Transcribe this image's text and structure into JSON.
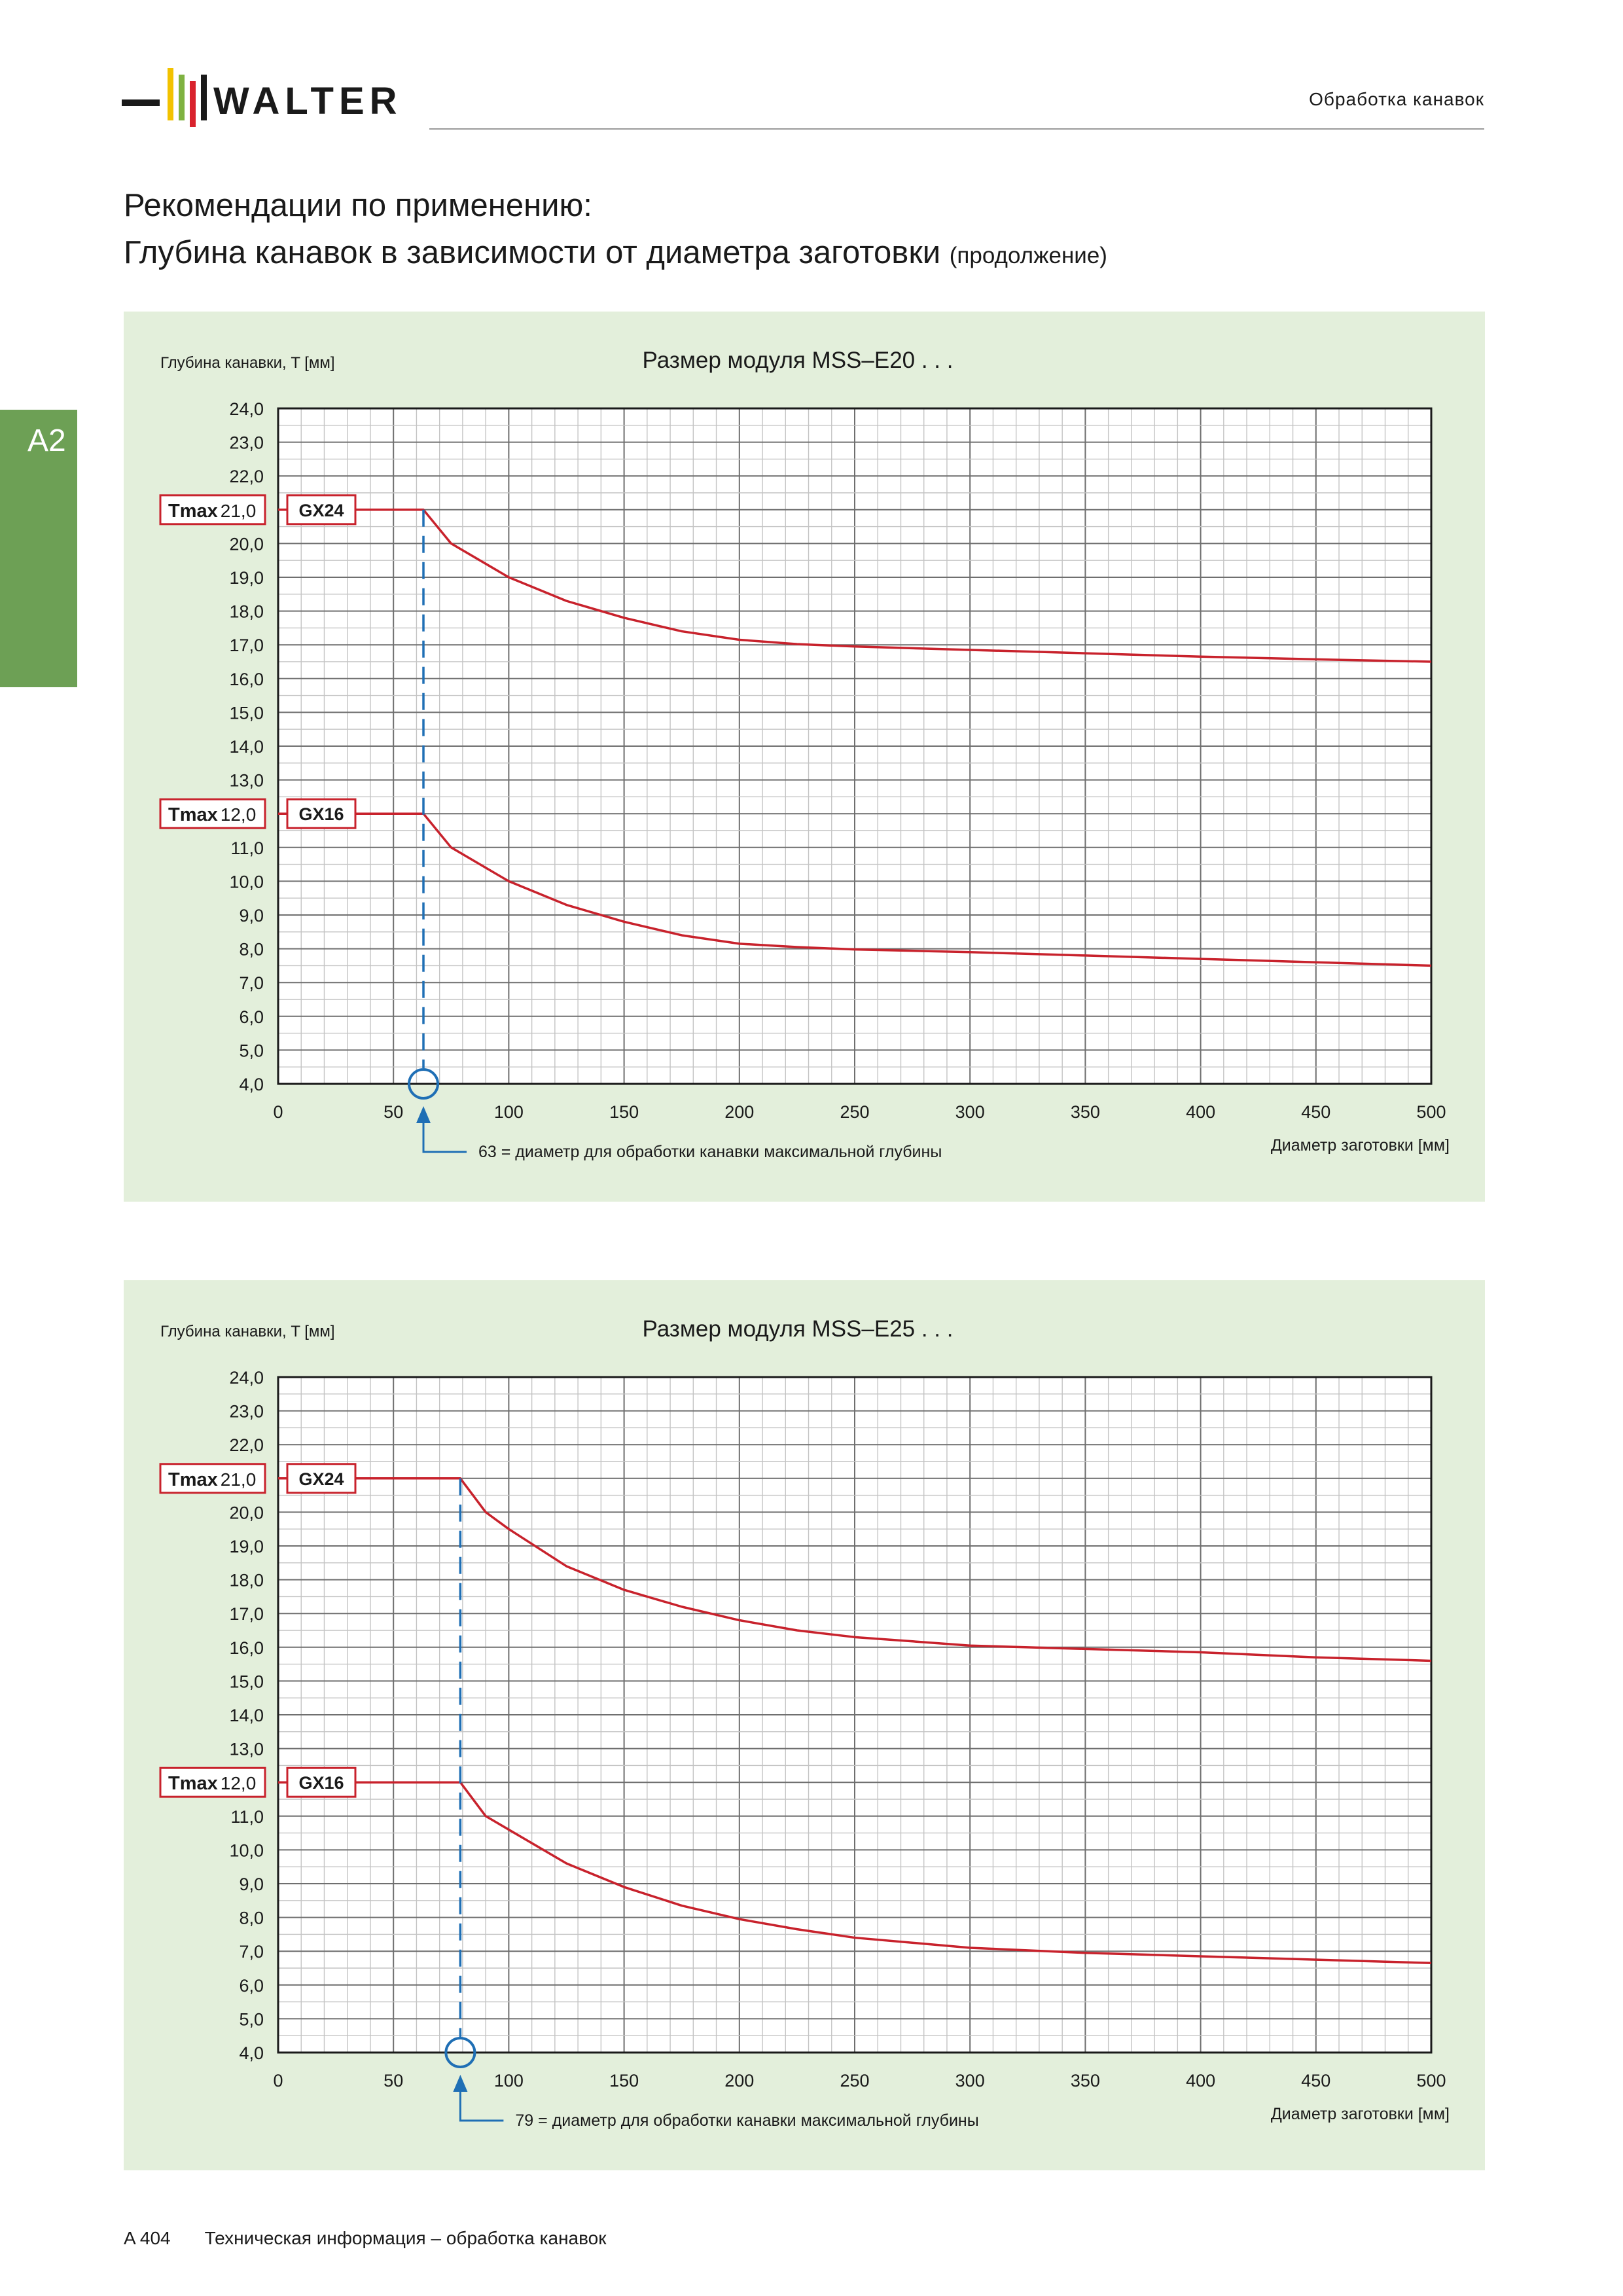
{
  "header": {
    "brand": "WALTER",
    "section": "Обработка канавок",
    "logo_bar_colors": [
      "#f2c200",
      "#7fb241",
      "#d9232d"
    ]
  },
  "title": {
    "line1": "Рекомендации по применению:",
    "line2": "Глубина канавок в зависимости от диаметра заготовки",
    "line2_suffix": "(продолжение)"
  },
  "side_tab": {
    "label": "A2",
    "color": "#6da055"
  },
  "footer": {
    "page": "A 404",
    "text": "Техническая информация – обработка канавок"
  },
  "colors": {
    "curve": "#c8222c",
    "marker": "#1f6fb5",
    "panel_bg": "#e3efdb"
  },
  "chart_data": [
    {
      "type": "line",
      "title": "Размер модуля MSS–E20 . . .",
      "ylabel": "Глубина канавки, T [мм]",
      "xlabel": "Диаметр заготовки [мм]",
      "xlim": [
        0,
        500
      ],
      "ylim": [
        4,
        24
      ],
      "x_ticks": [
        0,
        50,
        100,
        150,
        200,
        250,
        300,
        350,
        400,
        450,
        500
      ],
      "y_ticks": [
        "4,0",
        "5,0",
        "6,0",
        "7,0",
        "8,0",
        "9,0",
        "10,0",
        "11,0",
        "12,0",
        "13,0",
        "14,0",
        "15,0",
        "16,0",
        "17,0",
        "18,0",
        "19,0",
        "20,0",
        "21,0",
        "22,0",
        "23,0",
        "24,0"
      ],
      "tmax_label": "Tmax",
      "tmax_values": [
        "21,0",
        "12,0"
      ],
      "grid": true,
      "series": [
        {
          "name": "GX24",
          "x": [
            0,
            63,
            75,
            100,
            125,
            150,
            175,
            200,
            225,
            250,
            300,
            350,
            400,
            450,
            500
          ],
          "y": [
            21.0,
            21.0,
            20.0,
            19.0,
            18.3,
            17.8,
            17.4,
            17.15,
            17.02,
            16.95,
            16.85,
            16.75,
            16.65,
            16.57,
            16.5
          ]
        },
        {
          "name": "GX16",
          "x": [
            0,
            63,
            75,
            100,
            125,
            150,
            175,
            200,
            225,
            250,
            300,
            350,
            400,
            450,
            500
          ],
          "y": [
            12.0,
            12.0,
            11.0,
            10.0,
            9.3,
            8.8,
            8.4,
            8.15,
            8.05,
            7.98,
            7.9,
            7.8,
            7.7,
            7.6,
            7.5
          ]
        }
      ],
      "marker_x": 63,
      "annotation": "63 = диаметр для обработки канавки максимальной глубины"
    },
    {
      "type": "line",
      "title": "Размер модуля MSS–E25 . . .",
      "ylabel": "Глубина канавки, T [мм]",
      "xlabel": "Диаметр заготовки [мм]",
      "xlim": [
        0,
        500
      ],
      "ylim": [
        4,
        24
      ],
      "x_ticks": [
        0,
        50,
        100,
        150,
        200,
        250,
        300,
        350,
        400,
        450,
        500
      ],
      "y_ticks": [
        "4,0",
        "5,0",
        "6,0",
        "7,0",
        "8,0",
        "9,0",
        "10,0",
        "11,0",
        "12,0",
        "13,0",
        "14,0",
        "15,0",
        "16,0",
        "17,0",
        "18,0",
        "19,0",
        "20,0",
        "21,0",
        "22,0",
        "23,0",
        "24,0"
      ],
      "tmax_label": "Tmax",
      "tmax_values": [
        "21,0",
        "12,0"
      ],
      "grid": true,
      "series": [
        {
          "name": "GX24",
          "x": [
            0,
            79,
            90,
            100,
            125,
            150,
            175,
            200,
            225,
            250,
            300,
            350,
            400,
            450,
            500
          ],
          "y": [
            21.0,
            21.0,
            20.0,
            19.5,
            18.4,
            17.7,
            17.2,
            16.8,
            16.5,
            16.3,
            16.05,
            15.95,
            15.85,
            15.7,
            15.6
          ]
        },
        {
          "name": "GX16",
          "x": [
            0,
            79,
            90,
            100,
            125,
            150,
            175,
            200,
            225,
            250,
            300,
            350,
            400,
            450,
            500
          ],
          "y": [
            12.0,
            12.0,
            11.0,
            10.6,
            9.6,
            8.9,
            8.35,
            7.95,
            7.65,
            7.4,
            7.1,
            6.95,
            6.85,
            6.75,
            6.65
          ]
        }
      ],
      "marker_x": 79,
      "annotation": "79 = диаметр для обработки канавки максимальной глубины"
    }
  ]
}
